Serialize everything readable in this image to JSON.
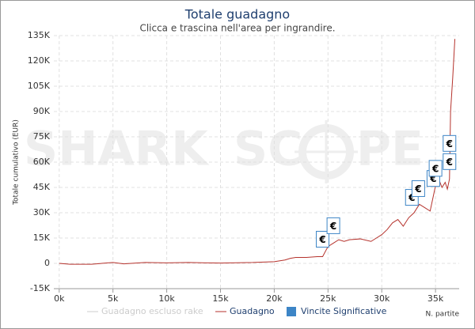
{
  "chart_data": {
    "type": "line",
    "title": "Totale guadagno",
    "subtitle": "Clicca e trascina nell'area per ingrandire.",
    "ylabel": "Totale cumulativo (EUR)",
    "xlabel": "N. partite",
    "watermark": [
      "SHARK",
      "SC",
      "PE"
    ],
    "x": [
      0,
      1000,
      3000,
      5000,
      6000,
      8000,
      10000,
      12000,
      15000,
      18000,
      20000,
      21000,
      21500,
      22000,
      23000,
      24000,
      24500,
      25000,
      25500,
      26000,
      26500,
      27000,
      28000,
      29000,
      29500,
      30000,
      30500,
      31000,
      31500,
      32000,
      32500,
      33000,
      33500,
      34000,
      34500,
      35000,
      35300,
      35600,
      35900,
      36100,
      36300,
      36400,
      36600,
      36800
    ],
    "series": [
      {
        "name": "Guadagno escluso rake",
        "color": "#cccccc",
        "visible": false
      },
      {
        "name": "Guadagno",
        "color": "#b5322c",
        "values": [
          0,
          -500,
          -500,
          500,
          -300,
          500,
          300,
          500,
          200,
          500,
          1000,
          2000,
          3000,
          3500,
          3500,
          4000,
          4000,
          10000,
          12000,
          14000,
          13000,
          14000,
          14500,
          13000,
          15000,
          17000,
          20000,
          24000,
          26000,
          22000,
          27000,
          30000,
          35000,
          33000,
          31000,
          46000,
          50000,
          45000,
          48000,
          44000,
          50000,
          90000,
          110000,
          133000
        ]
      },
      {
        "name": "Vincite Significative",
        "color": "#3d85c6",
        "type": "flags",
        "title": "€",
        "x": [
          24500,
          25500,
          32800,
          33400,
          34800,
          35000,
          36300,
          36300
        ]
      }
    ],
    "xlim": [
      -500,
      37200
    ],
    "ylim": [
      -15000,
      135000
    ],
    "xticks": [
      {
        "value": 0,
        "label": "0k"
      },
      {
        "value": 5000,
        "label": "5k"
      },
      {
        "value": 10000,
        "label": "10k"
      },
      {
        "value": 15000,
        "label": "15k"
      },
      {
        "value": 20000,
        "label": "20k"
      },
      {
        "value": 25000,
        "label": "25k"
      },
      {
        "value": 30000,
        "label": "30k"
      },
      {
        "value": 35000,
        "label": "35k"
      }
    ],
    "yticks": [
      {
        "value": -15000,
        "label": "-15K"
      },
      {
        "value": 0,
        "label": "0"
      },
      {
        "value": 15000,
        "label": "15K"
      },
      {
        "value": 30000,
        "label": "30K"
      },
      {
        "value": 45000,
        "label": "45K"
      },
      {
        "value": 60000,
        "label": "60K"
      },
      {
        "value": 75000,
        "label": "75K"
      },
      {
        "value": 90000,
        "label": "90K"
      },
      {
        "value": 105000,
        "label": "105K"
      },
      {
        "value": 120000,
        "label": "120K"
      },
      {
        "value": 135000,
        "label": "135K"
      }
    ],
    "grid": true
  }
}
